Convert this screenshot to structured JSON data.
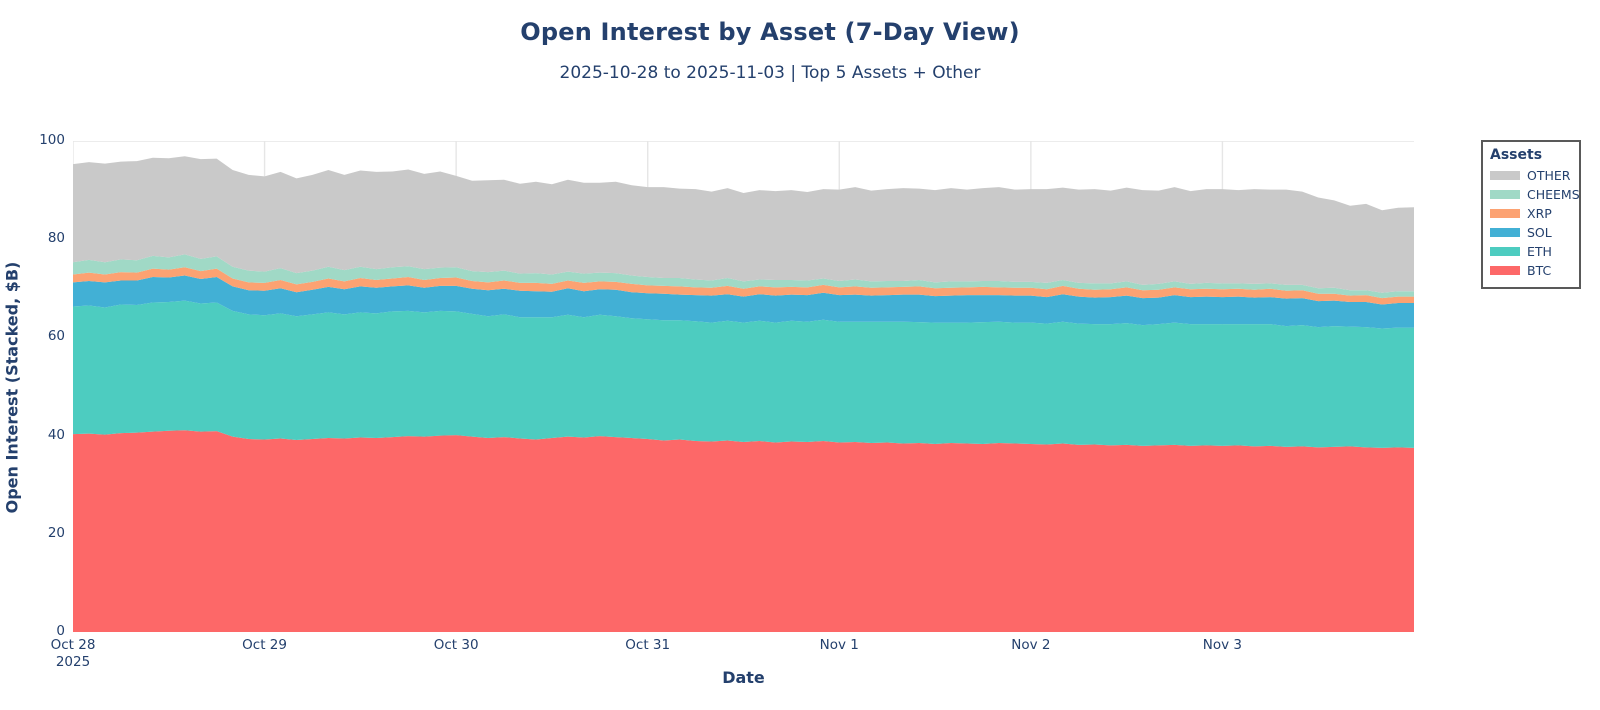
{
  "header": {
    "title": "Open Interest by Asset (7-Day View)",
    "subtitle": "2025-10-28 to 2025-11-03 | Top 5 Assets + Other"
  },
  "legend": {
    "title": "Assets"
  },
  "colors": {
    "text": "#24406d",
    "grid": "#e6e6e6",
    "legend_border": "#595959",
    "background": "#ffffff"
  },
  "chart_data": {
    "type": "area",
    "stacked": true,
    "title": "Open Interest by Asset (7-Day View)",
    "subtitle": "2025-10-28 to 2025-11-03 | Top 5 Assets + Other",
    "xlabel": "Date",
    "ylabel": "Open Interest (Stacked, $B)",
    "ylim": [
      0,
      100
    ],
    "yticks": [
      0,
      20,
      40,
      60,
      80,
      100
    ],
    "grid": true,
    "legend_position": "right-outside",
    "x_unit": "hours since 2025-10-28 00:00",
    "x_step_hours": 2,
    "x_total_hours": 168,
    "xticks": [
      {
        "t": 0,
        "label": "Oct 28",
        "sublabel": "2025"
      },
      {
        "t": 24,
        "label": "Oct 29"
      },
      {
        "t": 48,
        "label": "Oct 30"
      },
      {
        "t": 72,
        "label": "Oct 31"
      },
      {
        "t": 96,
        "label": "Nov 1"
      },
      {
        "t": 120,
        "label": "Nov 2"
      },
      {
        "t": 144,
        "label": "Nov 3"
      }
    ],
    "series": [
      {
        "name": "BTC",
        "color": "#FD6868",
        "values": [
          40.3,
          40.4,
          40.2,
          40.5,
          40.6,
          40.8,
          41.0,
          41.1,
          40.8,
          40.9,
          39.8,
          39.3,
          39.2,
          39.4,
          39.1,
          39.3,
          39.5,
          39.4,
          39.6,
          39.5,
          39.7,
          39.9,
          39.8,
          40.0,
          40.1,
          39.8,
          39.5,
          39.7,
          39.4,
          39.2,
          39.5,
          39.8,
          39.6,
          39.9,
          39.7,
          39.5,
          39.3,
          39.0,
          39.2,
          38.9,
          38.8,
          39.0,
          38.7,
          38.9,
          38.6,
          38.8,
          38.7,
          38.9,
          38.6,
          38.7,
          38.5,
          38.6,
          38.4,
          38.5,
          38.3,
          38.5,
          38.4,
          38.3,
          38.5,
          38.4,
          38.3,
          38.2,
          38.4,
          38.1,
          38.2,
          38.0,
          38.1,
          37.9,
          38.0,
          38.1,
          37.9,
          38.0,
          37.9,
          38.0,
          37.8,
          37.9,
          37.7,
          37.8,
          37.6,
          37.7,
          37.8,
          37.6,
          37.5,
          37.6,
          37.5
        ]
      },
      {
        "name": "ETH",
        "color": "#4DCCC0",
        "values": [
          26.0,
          26.1,
          25.9,
          26.2,
          26.0,
          26.3,
          26.2,
          26.4,
          26.1,
          26.2,
          25.6,
          25.4,
          25.3,
          25.5,
          25.2,
          25.4,
          25.6,
          25.3,
          25.5,
          25.4,
          25.6,
          25.5,
          25.3,
          25.4,
          25.2,
          25.0,
          24.8,
          25.0,
          24.7,
          24.9,
          24.6,
          24.8,
          24.5,
          24.7,
          24.6,
          24.4,
          24.4,
          24.5,
          24.3,
          24.4,
          24.2,
          24.4,
          24.3,
          24.5,
          24.4,
          24.6,
          24.5,
          24.7,
          24.6,
          24.5,
          24.7,
          24.6,
          24.8,
          24.6,
          24.7,
          24.5,
          24.6,
          24.8,
          24.7,
          24.6,
          24.7,
          24.6,
          24.8,
          24.7,
          24.5,
          24.7,
          24.8,
          24.6,
          24.7,
          24.9,
          24.8,
          24.7,
          24.8,
          24.7,
          24.9,
          24.8,
          24.6,
          24.7,
          24.5,
          24.6,
          24.4,
          24.5,
          24.3,
          24.4,
          24.5
        ]
      },
      {
        "name": "SOL",
        "color": "#42B0D5",
        "values": [
          4.9,
          5.0,
          5.1,
          4.9,
          5.0,
          5.2,
          5.0,
          5.1,
          5.0,
          5.2,
          5.0,
          4.9,
          5.0,
          5.1,
          4.9,
          5.0,
          5.2,
          5.1,
          5.3,
          5.2,
          5.1,
          5.2,
          5.0,
          5.1,
          5.2,
          5.1,
          5.3,
          5.2,
          5.4,
          5.3,
          5.2,
          5.4,
          5.3,
          5.2,
          5.4,
          5.3,
          5.3,
          5.4,
          5.2,
          5.3,
          5.5,
          5.4,
          5.3,
          5.4,
          5.5,
          5.3,
          5.4,
          5.5,
          5.4,
          5.5,
          5.3,
          5.4,
          5.5,
          5.6,
          5.4,
          5.5,
          5.6,
          5.5,
          5.4,
          5.5,
          5.5,
          5.4,
          5.6,
          5.5,
          5.4,
          5.5,
          5.6,
          5.5,
          5.4,
          5.6,
          5.5,
          5.6,
          5.5,
          5.6,
          5.4,
          5.5,
          5.6,
          5.5,
          5.3,
          5.2,
          5.0,
          5.1,
          4.9,
          5.0,
          5.0
        ]
      },
      {
        "name": "XRP",
        "color": "#FCA272",
        "values": [
          1.6,
          1.7,
          1.6,
          1.7,
          1.6,
          1.7,
          1.6,
          1.7,
          1.6,
          1.7,
          1.6,
          1.6,
          1.6,
          1.7,
          1.6,
          1.6,
          1.7,
          1.6,
          1.7,
          1.6,
          1.6,
          1.7,
          1.6,
          1.6,
          1.7,
          1.6,
          1.6,
          1.7,
          1.6,
          1.7,
          1.6,
          1.6,
          1.7,
          1.6,
          1.6,
          1.7,
          1.6,
          1.6,
          1.7,
          1.6,
          1.6,
          1.7,
          1.6,
          1.6,
          1.7,
          1.6,
          1.6,
          1.6,
          1.6,
          1.7,
          1.6,
          1.6,
          1.6,
          1.7,
          1.6,
          1.6,
          1.6,
          1.7,
          1.6,
          1.6,
          1.6,
          1.6,
          1.7,
          1.6,
          1.6,
          1.6,
          1.7,
          1.6,
          1.6,
          1.6,
          1.6,
          1.6,
          1.6,
          1.6,
          1.6,
          1.7,
          1.6,
          1.6,
          1.5,
          1.4,
          1.3,
          1.4,
          1.3,
          1.3,
          1.3
        ]
      },
      {
        "name": "CHEEMS",
        "color": "#A0D9C6",
        "values": [
          2.5,
          2.6,
          2.5,
          2.6,
          2.5,
          2.6,
          2.5,
          2.6,
          2.5,
          2.5,
          2.4,
          2.4,
          2.3,
          2.4,
          2.3,
          2.3,
          2.4,
          2.3,
          2.3,
          2.2,
          2.3,
          2.2,
          2.2,
          2.1,
          2.1,
          2.0,
          2.1,
          2.0,
          1.9,
          2.0,
          1.9,
          1.8,
          1.9,
          1.8,
          1.8,
          1.7,
          1.7,
          1.6,
          1.7,
          1.6,
          1.5,
          1.6,
          1.5,
          1.4,
          1.5,
          1.4,
          1.4,
          1.3,
          1.3,
          1.4,
          1.3,
          1.3,
          1.2,
          1.3,
          1.2,
          1.3,
          1.2,
          1.2,
          1.3,
          1.2,
          1.2,
          1.3,
          1.2,
          1.2,
          1.3,
          1.2,
          1.2,
          1.1,
          1.2,
          1.2,
          1.1,
          1.2,
          1.2,
          1.1,
          1.2,
          1.1,
          1.2,
          1.1,
          1.1,
          1.2,
          1.1,
          1.0,
          1.1,
          1.1,
          1.1
        ]
      },
      {
        "name": "OTHER",
        "color": "#C9C9C9",
        "values": [
          20.0,
          19.9,
          20.1,
          19.9,
          20.2,
          20.0,
          20.2,
          20.0,
          20.3,
          19.9,
          19.7,
          19.5,
          19.4,
          19.6,
          19.3,
          19.5,
          19.7,
          19.4,
          19.6,
          19.8,
          19.5,
          19.7,
          19.4,
          19.6,
          18.6,
          18.4,
          18.7,
          18.5,
          18.3,
          18.6,
          18.4,
          18.7,
          18.5,
          18.3,
          18.6,
          18.4,
          18.3,
          18.5,
          18.2,
          18.4,
          18.1,
          18.3,
          18.0,
          18.2,
          18.1,
          18.3,
          18.0,
          18.2,
          18.6,
          18.8,
          18.5,
          18.7,
          18.9,
          18.6,
          18.8,
          19.0,
          18.7,
          18.9,
          19.1,
          18.8,
          18.9,
          19.1,
          18.8,
          19.0,
          19.2,
          18.9,
          19.1,
          19.3,
          19.0,
          19.2,
          18.9,
          19.1,
          19.2,
          19.0,
          19.3,
          19.1,
          19.4,
          19.0,
          18.5,
          17.8,
          17.2,
          17.6,
          16.8,
          17.0,
          17.1
        ]
      }
    ]
  }
}
